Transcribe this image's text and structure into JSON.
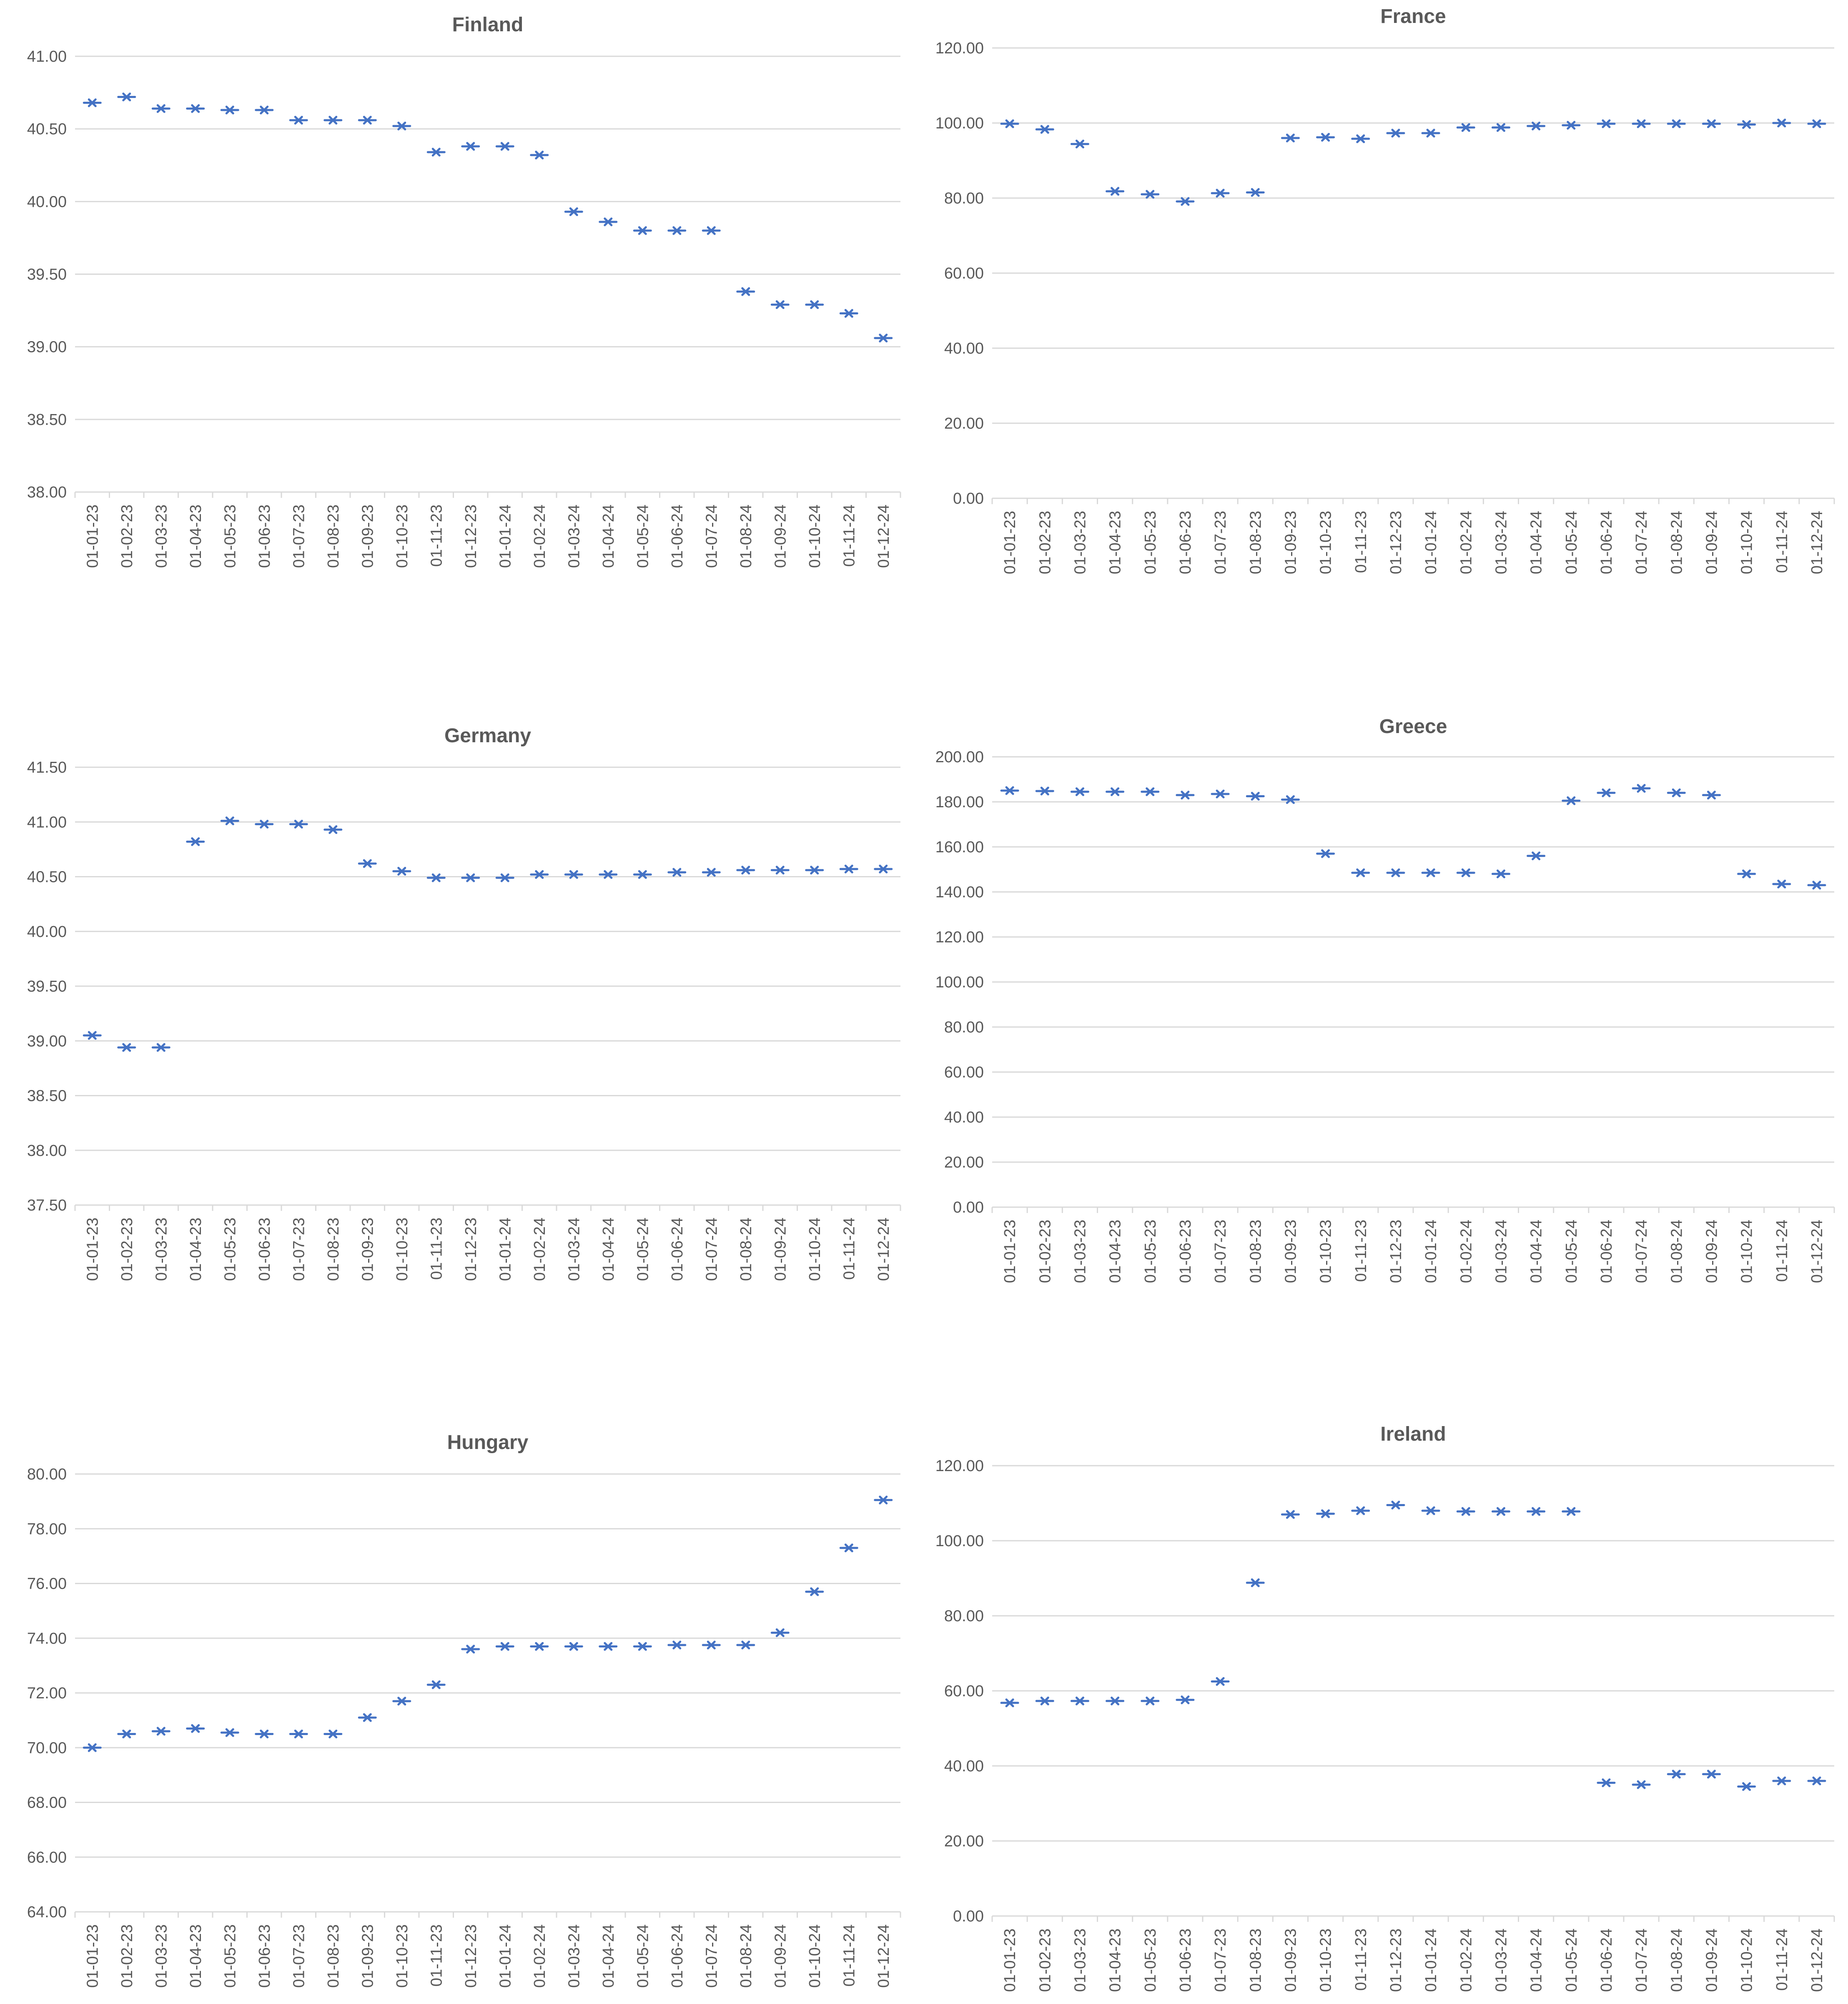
{
  "colors": {
    "marker": "#4472c4",
    "gridline": "#d9d9d9",
    "text": "#595959"
  },
  "chart_data": [
    {
      "type": "scatter",
      "title": "Finland",
      "xlabel": "",
      "ylabel": "",
      "marker": "x-with-horizontal-bar",
      "grid": true,
      "legend": "none",
      "ylim": [
        38.0,
        41.0
      ],
      "yticks": [
        "41.00",
        "40.50",
        "40.00",
        "39.50",
        "39.00",
        "38.50",
        "38.00"
      ],
      "categories": [
        "01-01-23",
        "01-02-23",
        "01-03-23",
        "01-04-23",
        "01-05-23",
        "01-06-23",
        "01-07-23",
        "01-08-23",
        "01-09-23",
        "01-10-23",
        "01-11-23",
        "01-12-23",
        "01-01-24",
        "01-02-24",
        "01-03-24",
        "01-04-24",
        "01-05-24",
        "01-06-24",
        "01-07-24",
        "01-08-24",
        "01-09-24",
        "01-10-24",
        "01-11-24",
        "01-12-24"
      ],
      "values": [
        40.68,
        40.72,
        40.64,
        40.64,
        40.63,
        40.63,
        40.56,
        40.56,
        40.56,
        40.52,
        40.34,
        40.38,
        40.38,
        40.32,
        39.93,
        39.86,
        39.8,
        39.8,
        39.8,
        39.38,
        39.29,
        39.29,
        39.23,
        39.06
      ]
    },
    {
      "type": "scatter",
      "title": "France",
      "xlabel": "",
      "ylabel": "",
      "marker": "x-with-horizontal-bar",
      "grid": true,
      "legend": "none",
      "ylim": [
        0,
        120
      ],
      "yticks": [
        "120.00",
        "100.00",
        "80.00",
        "60.00",
        "40.00",
        "20.00",
        "0.00"
      ],
      "categories": [
        "01-01-23",
        "01-02-23",
        "01-03-23",
        "01-04-23",
        "01-05-23",
        "01-06-23",
        "01-07-23",
        "01-08-23",
        "01-09-23",
        "01-10-23",
        "01-11-23",
        "01-12-23",
        "01-01-24",
        "01-02-24",
        "01-03-24",
        "01-04-24",
        "01-05-24",
        "01-06-24",
        "01-07-24",
        "01-08-24",
        "01-09-24",
        "01-10-24",
        "01-11-24",
        "01-12-24"
      ],
      "values": [
        99.8,
        98.3,
        94.4,
        81.8,
        81.0,
        79.1,
        81.3,
        81.5,
        96.0,
        96.2,
        95.8,
        97.3,
        97.3,
        98.8,
        98.8,
        99.2,
        99.4,
        99.8,
        99.8,
        99.8,
        99.8,
        99.6,
        100.0,
        99.8
      ]
    },
    {
      "type": "scatter",
      "title": "Germany",
      "xlabel": "",
      "ylabel": "",
      "marker": "x-with-horizontal-bar",
      "grid": true,
      "legend": "none",
      "ylim": [
        37.5,
        41.5
      ],
      "yticks": [
        "41.50",
        "41.00",
        "40.50",
        "40.00",
        "39.50",
        "39.00",
        "38.50",
        "38.00",
        "37.50"
      ],
      "categories": [
        "01-01-23",
        "01-02-23",
        "01-03-23",
        "01-04-23",
        "01-05-23",
        "01-06-23",
        "01-07-23",
        "01-08-23",
        "01-09-23",
        "01-10-23",
        "01-11-23",
        "01-12-23",
        "01-01-24",
        "01-02-24",
        "01-03-24",
        "01-04-24",
        "01-05-24",
        "01-06-24",
        "01-07-24",
        "01-08-24",
        "01-09-24",
        "01-10-24",
        "01-11-24",
        "01-12-24"
      ],
      "values": [
        39.05,
        38.94,
        38.94,
        40.82,
        41.01,
        40.98,
        40.98,
        40.93,
        40.62,
        40.55,
        40.49,
        40.49,
        40.49,
        40.52,
        40.52,
        40.52,
        40.52,
        40.54,
        40.54,
        40.56,
        40.56,
        40.56,
        40.57,
        40.57
      ]
    },
    {
      "type": "scatter",
      "title": "Greece",
      "xlabel": "",
      "ylabel": "",
      "marker": "x-with-horizontal-bar",
      "grid": true,
      "legend": "none",
      "ylim": [
        0,
        200
      ],
      "yticks": [
        "200.00",
        "180.00",
        "160.00",
        "140.00",
        "120.00",
        "100.00",
        "80.00",
        "60.00",
        "40.00",
        "20.00",
        "0.00"
      ],
      "categories": [
        "01-01-23",
        "01-02-23",
        "01-03-23",
        "01-04-23",
        "01-05-23",
        "01-06-23",
        "01-07-23",
        "01-08-23",
        "01-09-23",
        "01-10-23",
        "01-11-23",
        "01-12-23",
        "01-01-24",
        "01-02-24",
        "01-03-24",
        "01-04-24",
        "01-05-24",
        "01-06-24",
        "01-07-24",
        "01-08-24",
        "01-09-24",
        "01-10-24",
        "01-11-24",
        "01-12-24"
      ],
      "values": [
        185.0,
        184.8,
        184.5,
        184.5,
        184.5,
        183.0,
        183.5,
        182.5,
        181.0,
        157.0,
        148.5,
        148.5,
        148.5,
        148.5,
        148.0,
        156.0,
        180.5,
        184.0,
        186.0,
        184.0,
        183.0,
        148.0,
        143.5,
        143.0
      ]
    },
    {
      "type": "scatter",
      "title": "Hungary",
      "xlabel": "",
      "ylabel": "",
      "marker": "x-with-horizontal-bar",
      "grid": true,
      "legend": "none",
      "ylim": [
        64,
        80
      ],
      "yticks": [
        "80.00",
        "78.00",
        "76.00",
        "74.00",
        "72.00",
        "70.00",
        "68.00",
        "66.00",
        "64.00"
      ],
      "categories": [
        "01-01-23",
        "01-02-23",
        "01-03-23",
        "01-04-23",
        "01-05-23",
        "01-06-23",
        "01-07-23",
        "01-08-23",
        "01-09-23",
        "01-10-23",
        "01-11-23",
        "01-12-23",
        "01-01-24",
        "01-02-24",
        "01-03-24",
        "01-04-24",
        "01-05-24",
        "01-06-24",
        "01-07-24",
        "01-08-24",
        "01-09-24",
        "01-10-24",
        "01-11-24",
        "01-12-24"
      ],
      "values": [
        70.0,
        70.5,
        70.6,
        70.7,
        70.55,
        70.5,
        70.5,
        70.5,
        71.1,
        71.7,
        72.3,
        73.6,
        73.7,
        73.7,
        73.7,
        73.7,
        73.7,
        73.75,
        73.75,
        73.75,
        74.2,
        75.7,
        77.3,
        79.05
      ]
    },
    {
      "type": "scatter",
      "title": "Ireland",
      "xlabel": "",
      "ylabel": "",
      "marker": "x-with-horizontal-bar",
      "grid": true,
      "legend": "none",
      "ylim": [
        0,
        120
      ],
      "yticks": [
        "120.00",
        "100.00",
        "80.00",
        "60.00",
        "40.00",
        "20.00",
        "0.00"
      ],
      "categories": [
        "01-01-23",
        "01-02-23",
        "01-03-23",
        "01-04-23",
        "01-05-23",
        "01-06-23",
        "01-07-23",
        "01-08-23",
        "01-09-23",
        "01-10-23",
        "01-11-23",
        "01-12-23",
        "01-01-24",
        "01-02-24",
        "01-03-24",
        "01-04-24",
        "01-05-24",
        "01-06-24",
        "01-07-24",
        "01-08-24",
        "01-09-24",
        "01-10-24",
        "01-11-24",
        "01-12-24"
      ],
      "values": [
        56.8,
        57.3,
        57.3,
        57.3,
        57.3,
        57.6,
        62.5,
        88.8,
        107.0,
        107.2,
        108.0,
        109.5,
        108.0,
        107.8,
        107.8,
        107.8,
        107.8,
        35.5,
        35.0,
        37.8,
        37.8,
        34.5,
        36.0,
        36.0
      ]
    }
  ]
}
